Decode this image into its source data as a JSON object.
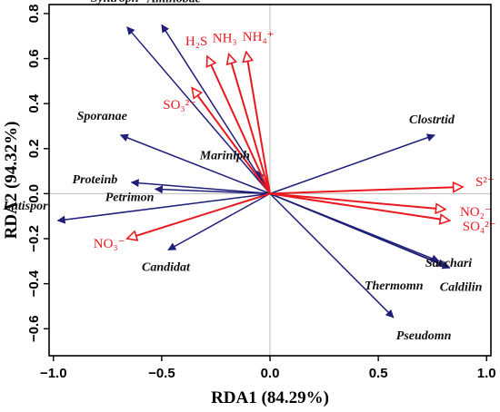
{
  "chart_data": {
    "type": "scatter",
    "subtype": "rda-biplot",
    "title": "",
    "xlabel": "RDA1 (84.29%)",
    "ylabel": "RDA2 (94.32%)",
    "xlim": [
      -1.02,
      1.02
    ],
    "ylim": [
      -0.72,
      0.84
    ],
    "xticks": [
      -1.0,
      -0.5,
      0.0,
      0.5,
      1.0
    ],
    "yticks": [
      -0.6,
      -0.4,
      -0.2,
      0.0,
      0.2,
      0.4,
      0.6,
      0.8
    ],
    "xtick_labels": [
      "−1.0",
      "−0.5",
      "0.0",
      "0.5",
      "1.0"
    ],
    "ytick_labels": [
      "−0.6",
      "−0.4",
      "−0.2",
      "0.0",
      "0.2",
      "0.4",
      "0.6",
      "0.8"
    ],
    "grid": false,
    "zero_lines": true,
    "colors": {
      "species": "#1f1f7a",
      "environment": "#e8191f"
    },
    "series": [
      {
        "group": "species",
        "arrow_style": "filled",
        "color": "#1f1f7a",
        "vectors": [
          {
            "label": "Syntroph",
            "x": -0.66,
            "y": 0.74
          },
          {
            "label": "Aminobac",
            "x": -0.5,
            "y": 0.75
          },
          {
            "label": "Sporanae",
            "x": -0.69,
            "y": 0.26
          },
          {
            "label": "Mariniph",
            "x": -0.06,
            "y": 0.1
          },
          {
            "label": "Proteinb",
            "x": -0.64,
            "y": 0.05
          },
          {
            "label": "Petrimon",
            "x": -0.53,
            "y": 0.02
          },
          {
            "label": "Lutispor",
            "x": -0.98,
            "y": -0.12
          },
          {
            "label": "Candidat",
            "x": -0.47,
            "y": -0.25
          },
          {
            "label": "Clostrtid",
            "x": 0.76,
            "y": 0.26
          },
          {
            "label": "Sacchari",
            "x": 0.78,
            "y": -0.3
          },
          {
            "label": "Thermomn",
            "x": 0.81,
            "y": -0.32
          },
          {
            "label": "Caldilin",
            "x": 0.83,
            "y": -0.33
          },
          {
            "label": "Pseudomn",
            "x": 0.57,
            "y": -0.55
          }
        ]
      },
      {
        "group": "environment",
        "arrow_style": "open",
        "color": "#e8191f",
        "vectors": [
          {
            "label": "H₂S",
            "x": -0.29,
            "y": 0.61
          },
          {
            "label": "NH₃",
            "x": -0.19,
            "y": 0.62
          },
          {
            "label": "NH₄⁺",
            "x": -0.11,
            "y": 0.63
          },
          {
            "label": "SO₃²⁻",
            "x": -0.36,
            "y": 0.47
          },
          {
            "label": "S²⁻",
            "x": 0.89,
            "y": 0.03
          },
          {
            "label": "NO₂⁻",
            "x": 0.81,
            "y": -0.07
          },
          {
            "label": "SO₄²⁻",
            "x": 0.83,
            "y": -0.12
          },
          {
            "label": "NO₃⁻",
            "x": -0.66,
            "y": -0.2
          }
        ]
      }
    ]
  }
}
